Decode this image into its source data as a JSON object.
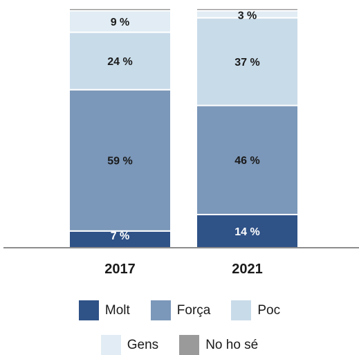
{
  "chart_data": {
    "type": "bar",
    "stacked": true,
    "normalized": true,
    "categories": [
      "2017",
      "2021"
    ],
    "series": [
      {
        "name": "Molt",
        "color": "#2f5287",
        "values": [
          7,
          14
        ],
        "labels": [
          "7 %",
          "14 %"
        ],
        "label_color": "#ffffff"
      },
      {
        "name": "Força",
        "color": "#7b97b9",
        "values": [
          59,
          46
        ],
        "labels": [
          "59 %",
          "46 %"
        ],
        "label_color": "#1a1a1a"
      },
      {
        "name": "Poc",
        "color": "#c8dbe9",
        "values": [
          24,
          37
        ],
        "labels": [
          "24 %",
          "37 %"
        ],
        "label_color": "#1a1a1a"
      },
      {
        "name": "Gens",
        "color": "#e1ecf4",
        "values": [
          9,
          3
        ],
        "labels": [
          "9 %",
          "3 %"
        ],
        "label_color": "#1a1a1a"
      },
      {
        "name": "No ho sé",
        "color": "#9a9a9a",
        "values": [
          1,
          1
        ],
        "labels": [
          "",
          ""
        ],
        "label_color": "#1a1a1a"
      }
    ],
    "ylim": [
      0,
      100
    ],
    "grid": false,
    "legend_position": "bottom"
  },
  "legend": {
    "row1": [
      "Molt",
      "Força",
      "Poc"
    ],
    "row2": [
      "Gens",
      "No ho sé"
    ]
  }
}
